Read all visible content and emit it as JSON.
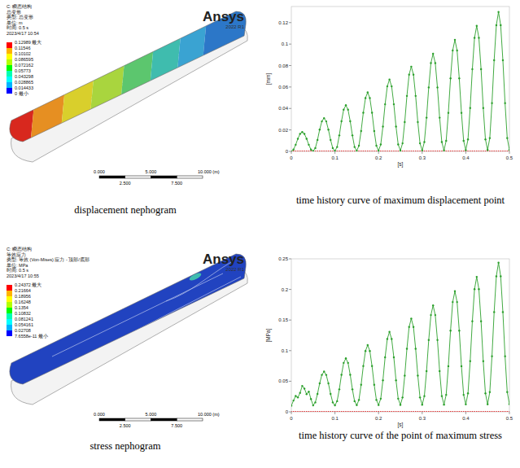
{
  "chart_data": [
    {
      "type": "line",
      "caption": "time history curve of maximum displacement point",
      "x_label": "[s]",
      "y_label": "[mm]",
      "x": [
        0,
        0.005,
        0.01,
        0.015,
        0.02,
        0.025,
        0.03,
        0.035,
        0.04,
        0.045,
        0.05,
        0.055,
        0.06,
        0.065,
        0.07,
        0.075,
        0.08,
        0.085,
        0.09,
        0.095,
        0.1,
        0.105,
        0.11,
        0.115,
        0.12,
        0.125,
        0.13,
        0.135,
        0.14,
        0.145,
        0.15,
        0.155,
        0.16,
        0.165,
        0.17,
        0.175,
        0.18,
        0.185,
        0.19,
        0.195,
        0.2,
        0.205,
        0.21,
        0.215,
        0.22,
        0.225,
        0.23,
        0.235,
        0.24,
        0.245,
        0.25,
        0.255,
        0.26,
        0.265,
        0.27,
        0.275,
        0.28,
        0.285,
        0.29,
        0.295,
        0.3,
        0.305,
        0.31,
        0.315,
        0.32,
        0.325,
        0.33,
        0.335,
        0.34,
        0.345,
        0.35,
        0.355,
        0.36,
        0.365,
        0.37,
        0.375,
        0.38,
        0.385,
        0.39,
        0.395,
        0.4,
        0.405,
        0.41,
        0.415,
        0.42,
        0.425,
        0.43,
        0.435,
        0.44,
        0.445,
        0.45,
        0.455,
        0.46,
        0.465,
        0.47,
        0.475,
        0.48,
        0.485,
        0.49,
        0.495,
        0.5
      ],
      "xlim": [
        0,
        0.5
      ],
      "xticks": [
        0,
        0.1,
        0.2,
        0.3,
        0.4,
        0.5
      ],
      "ylim": [
        0,
        0.135
      ],
      "yticks": [
        0,
        0.02,
        0.04,
        0.06,
        0.08,
        0.1,
        0.12
      ],
      "grid": false,
      "series": [
        {
          "color": "#2ca02c",
          "marker": "circle",
          "line_style": "solid",
          "values": [
            0,
            0.0017,
            0.0062,
            0.0118,
            0.0163,
            0.018,
            0.0163,
            0.0118,
            0.0062,
            0.0017,
            0.0003,
            0.003,
            0.0107,
            0.0203,
            0.028,
            0.031,
            0.028,
            0.0203,
            0.0107,
            0.003,
            0.0004,
            0.0041,
            0.0149,
            0.0281,
            0.0389,
            0.043,
            0.0389,
            0.0281,
            0.0149,
            0.0041,
            0.0005,
            0.0053,
            0.019,
            0.036,
            0.0497,
            0.055,
            0.0497,
            0.036,
            0.019,
            0.0053,
            0.0006,
            0.0064,
            0.0231,
            0.0439,
            0.0606,
            0.067,
            0.0606,
            0.0439,
            0.0231,
            0.0064,
            0.0008,
            0.0075,
            0.0273,
            0.0517,
            0.0715,
            0.079,
            0.0715,
            0.0517,
            0.0273,
            0.0075,
            0.0009,
            0.0087,
            0.0314,
            0.0596,
            0.0823,
            0.091,
            0.0823,
            0.0596,
            0.0314,
            0.0087,
            0.001,
            0.0099,
            0.0359,
            0.0681,
            0.0941,
            0.104,
            0.0941,
            0.0681,
            0.0359,
            0.0099,
            0.0012,
            0.0112,
            0.0404,
            0.0766,
            0.1058,
            0.117,
            0.1058,
            0.0766,
            0.0404,
            0.0112,
            0.0013,
            0.0124,
            0.0449,
            0.085,
            0.1175,
            0.1299,
            0.1175,
            0.085,
            0.0449,
            0.0124,
            0.0014
          ]
        },
        {
          "color": "#e02020",
          "marker": "circle",
          "line_style": "none",
          "values": [
            0,
            0,
            0,
            0,
            0,
            0,
            0,
            0,
            0,
            0,
            0,
            0,
            0,
            0,
            0,
            0,
            0,
            0,
            0,
            0,
            0,
            0,
            0,
            0,
            0,
            0,
            0,
            0,
            0,
            0,
            0,
            0,
            0,
            0,
            0,
            0,
            0,
            0,
            0,
            0,
            0,
            0,
            0,
            0,
            0,
            0,
            0,
            0,
            0,
            0,
            0,
            0,
            0,
            0,
            0,
            0,
            0,
            0,
            0,
            0,
            0,
            0,
            0,
            0,
            0,
            0,
            0,
            0,
            0,
            0,
            0,
            0,
            0,
            0,
            0,
            0,
            0,
            0,
            0,
            0,
            0,
            0,
            0,
            0,
            0,
            0,
            0,
            0,
            0,
            0,
            0,
            0,
            0,
            0,
            0,
            0,
            0,
            0,
            0,
            0,
            0
          ]
        }
      ]
    },
    {
      "type": "line",
      "caption": "time history curve of the point of maximum stress",
      "x_label": "[s]",
      "y_label": "[MPa]",
      "x": [
        0,
        0.005,
        0.01,
        0.015,
        0.02,
        0.025,
        0.03,
        0.035,
        0.04,
        0.045,
        0.05,
        0.055,
        0.06,
        0.065,
        0.07,
        0.075,
        0.08,
        0.085,
        0.09,
        0.095,
        0.1,
        0.105,
        0.11,
        0.115,
        0.12,
        0.125,
        0.13,
        0.135,
        0.14,
        0.145,
        0.15,
        0.155,
        0.16,
        0.165,
        0.17,
        0.175,
        0.18,
        0.185,
        0.19,
        0.195,
        0.2,
        0.205,
        0.21,
        0.215,
        0.22,
        0.225,
        0.23,
        0.235,
        0.24,
        0.245,
        0.25,
        0.255,
        0.26,
        0.265,
        0.27,
        0.275,
        0.28,
        0.285,
        0.29,
        0.295,
        0.3,
        0.305,
        0.31,
        0.315,
        0.32,
        0.325,
        0.33,
        0.335,
        0.34,
        0.345,
        0.35,
        0.355,
        0.36,
        0.365,
        0.37,
        0.375,
        0.38,
        0.385,
        0.39,
        0.395,
        0.4,
        0.405,
        0.41,
        0.415,
        0.42,
        0.425,
        0.43,
        0.435,
        0.44,
        0.445,
        0.45,
        0.455,
        0.46,
        0.465,
        0.47,
        0.475,
        0.48,
        0.485,
        0.49,
        0.495,
        0.5
      ],
      "xlim": [
        0,
        0.5
      ],
      "xticks": [
        0,
        0.1,
        0.2,
        0.3,
        0.4,
        0.5
      ],
      "ylim": [
        0,
        0.25
      ],
      "yticks": [
        0,
        0.05,
        0.1,
        0.15,
        0.2,
        0.25
      ],
      "grid": false,
      "series": [
        {
          "color": "#2ca02c",
          "marker": "circle",
          "line_style": "solid",
          "values": [
            0.01,
            0.0185,
            0.026,
            0.0235,
            0.031,
            0.0424,
            0.038,
            0.029,
            0.033,
            0.021,
            0.0105,
            0.0154,
            0.0293,
            0.0465,
            0.0604,
            0.0658,
            0.0604,
            0.0465,
            0.0293,
            0.0154,
            0.0107,
            0.0174,
            0.0368,
            0.0606,
            0.08,
            0.0874,
            0.08,
            0.0606,
            0.0368,
            0.0174,
            0.0109,
            0.0195,
            0.0442,
            0.0748,
            0.0995,
            0.109,
            0.0995,
            0.0748,
            0.0442,
            0.0195,
            0.0111,
            0.0215,
            0.0516,
            0.089,
            0.1191,
            0.1306,
            0.1191,
            0.089,
            0.0516,
            0.0215,
            0.0114,
            0.0235,
            0.0591,
            0.1031,
            0.1387,
            0.1522,
            0.1387,
            0.1031,
            0.0591,
            0.0235,
            0.0116,
            0.0257,
            0.0665,
            0.1173,
            0.1581,
            0.1738,
            0.1581,
            0.1173,
            0.0665,
            0.0257,
            0.0118,
            0.0278,
            0.0746,
            0.1326,
            0.1794,
            0.1972,
            0.1794,
            0.1326,
            0.0746,
            0.0278,
            0.0122,
            0.0302,
            0.0827,
            0.1479,
            0.2004,
            0.2206,
            0.2004,
            0.1479,
            0.0827,
            0.0302,
            0.0123,
            0.0323,
            0.0908,
            0.163,
            0.2215,
            0.2437,
            0.2215,
            0.163,
            0.0908,
            0.0323,
            0.0125
          ]
        },
        {
          "color": "#e02020",
          "marker": "circle",
          "line_style": "none",
          "values": [
            0,
            0,
            0,
            0,
            0,
            0,
            0,
            0,
            0,
            0,
            0,
            0,
            0,
            0,
            0,
            0,
            0,
            0,
            0,
            0,
            0,
            0,
            0,
            0,
            0,
            0,
            0,
            0,
            0,
            0,
            0,
            0,
            0,
            0,
            0,
            0,
            0,
            0,
            0,
            0,
            0,
            0,
            0,
            0,
            0,
            0,
            0,
            0,
            0,
            0,
            0,
            0,
            0,
            0,
            0,
            0,
            0,
            0,
            0,
            0,
            0,
            0,
            0,
            0,
            0,
            0,
            0,
            0,
            0,
            0,
            0,
            0,
            0,
            0,
            0,
            0,
            0,
            0,
            0,
            0,
            0,
            0,
            0,
            0,
            0,
            0,
            0,
            0,
            0,
            0,
            0,
            0,
            0,
            0,
            0,
            0,
            0,
            0,
            0,
            0,
            0
          ]
        }
      ]
    }
  ],
  "nephograms": [
    {
      "caption": "displacement nephogram",
      "header": [
        "C: 瞬态结构",
        "总变形",
        "类型: 总变形",
        "单位: m",
        "时间: 0.5 s",
        "2023/4/17 10:54"
      ],
      "legend_labels": [
        "0.12989 最大",
        "0.11546",
        "0.10102",
        "0.086595",
        "0.072162",
        "0.05773",
        "0.043298",
        "0.028865",
        "0.014433",
        "0 最小"
      ],
      "brand": "Ansys",
      "version": "2022 R1",
      "scale_bar": [
        "0.000",
        "5.000",
        "10.000 (m)",
        "2.500",
        "7.500"
      ]
    },
    {
      "caption": "stress nephogram",
      "header": [
        "C: 瞬态结构",
        "等效应力",
        "类型: 等效 (Von-Mises) 应力 - 顶部/底部",
        "单位: MPa",
        "时间: 0.5 s",
        "2023/4/17 10:55"
      ],
      "legend_labels": [
        "0.24372 最大",
        "0.21664",
        "0.18956",
        "0.16248",
        "0.1354",
        "0.10832",
        "0.081241",
        "0.054161",
        "0.02708",
        "7.6558e-11 最小"
      ],
      "brand": "Ansys",
      "version": "2022 R1",
      "scale_bar": [
        "0.000",
        "5.000",
        "10.000 (m)",
        "2.500",
        "7.500"
      ]
    }
  ]
}
